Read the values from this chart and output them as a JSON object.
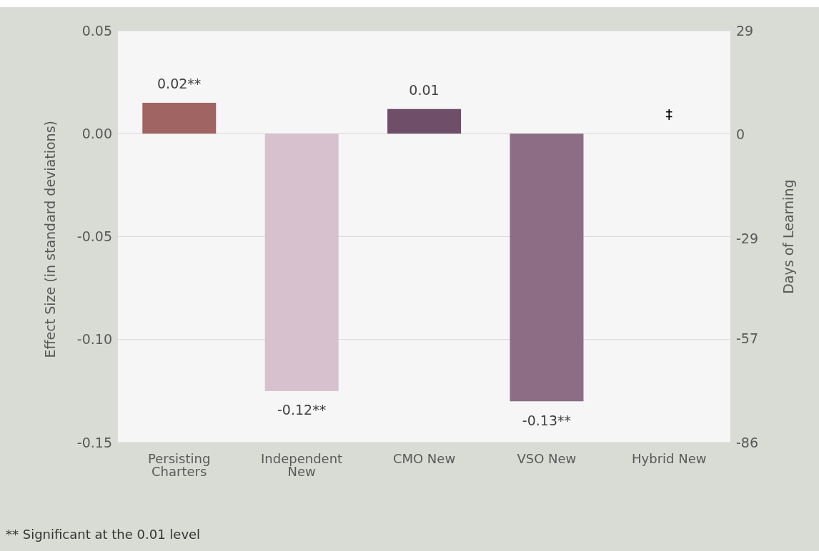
{
  "chart_data": {
    "type": "bar",
    "categories": [
      "Persisting Charters",
      "Independent New",
      "CMO New",
      "VSO New",
      "Hybrid New"
    ],
    "values": [
      0.015,
      -0.125,
      0.012,
      -0.13,
      null
    ],
    "colors": [
      "#a06462",
      "#d7c1ce",
      "#6e4e68",
      "#8d6d86",
      "#8d6d86"
    ],
    "value_labels": [
      "0.02**",
      "-0.12**",
      "0.01",
      "-0.13**",
      "‡"
    ],
    "ylabel": "Effect Size (in standard deviations)",
    "y2label": "Days of Learning",
    "ylim": [
      -0.15,
      0.05
    ],
    "yticks": [
      {
        "value": -0.15,
        "label": "-0.15"
      },
      {
        "value": -0.1,
        "label": "-0.10"
      },
      {
        "value": -0.05,
        "label": "-0.05"
      },
      {
        "value": 0,
        "label": "0.00"
      },
      {
        "value": 0.05,
        "label": "0.05"
      }
    ],
    "y2lim": [
      -86,
      29
    ],
    "y2ticks": [
      -86,
      -57,
      -29,
      0,
      29
    ],
    "grid": "y",
    "annotations": [
      "** Significant at the 0.01 level"
    ]
  }
}
